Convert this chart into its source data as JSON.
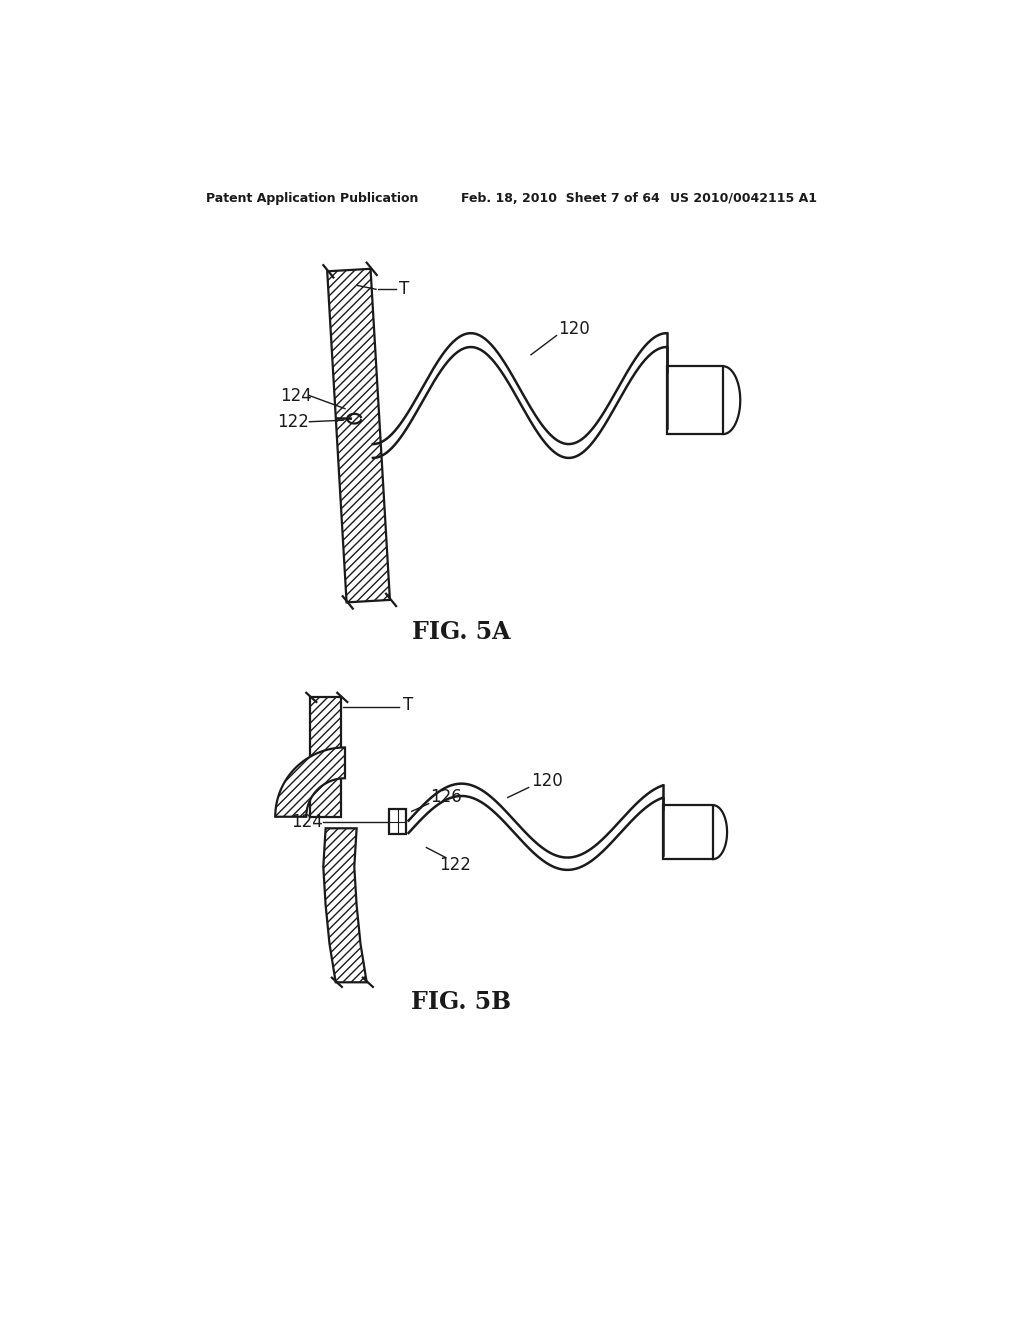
{
  "bg_color": "#ffffff",
  "line_color": "#1a1a1a",
  "header_left": "Patent Application Publication",
  "header_mid": "Feb. 18, 2010  Sheet 7 of 64",
  "header_right": "US 2010/0042115 A1",
  "fig5a_label": "FIG. 5A",
  "fig5b_label": "FIG. 5B",
  "lw": 1.6,
  "tube_lw": 1.8
}
